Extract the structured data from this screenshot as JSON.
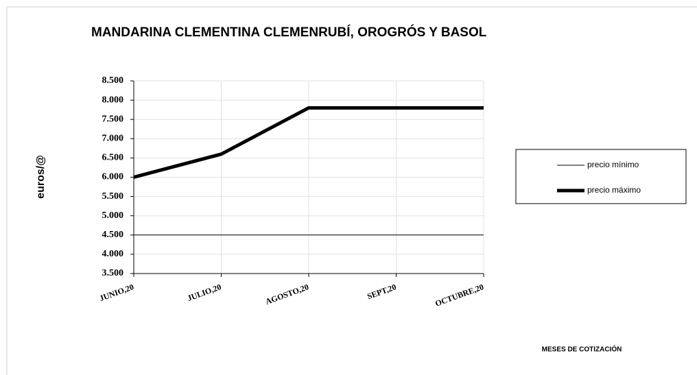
{
  "chart_data": {
    "type": "line",
    "title": "MANDARINA CLEMENTINA CLEMENRUBÍ, OROGRÓS Y BASOL",
    "y_label": "euros/@",
    "x_label": "MESES DE COTIZACIÓN",
    "categories": [
      "JUNIO,20",
      "JULIO,20",
      "AGOSTO,20",
      "SEPT,20",
      "OCTUBRE,20"
    ],
    "series": [
      {
        "name": "precio mínimo",
        "color": "#000000",
        "values": [
          4.5,
          4.5,
          4.5,
          4.5,
          4.5
        ]
      },
      {
        "name": "precio máximo",
        "color": "#000000",
        "values": [
          6.0,
          6.6,
          7.8,
          7.8,
          7.8
        ]
      }
    ],
    "ylim": [
      3.5,
      8.5
    ],
    "yticks": [
      {
        "value": 3.5,
        "label": "3.500"
      },
      {
        "value": 4.0,
        "label": "4.000"
      },
      {
        "value": 4.5,
        "label": "4.500"
      },
      {
        "value": 5.0,
        "label": "5.000"
      },
      {
        "value": 5.5,
        "label": "5.500"
      },
      {
        "value": 6.0,
        "label": "6.000"
      },
      {
        "value": 6.5,
        "label": "6.500"
      },
      {
        "value": 7.0,
        "label": "7.000"
      },
      {
        "value": 7.5,
        "label": "7.500"
      },
      {
        "value": 8.0,
        "label": "8.000"
      },
      {
        "value": 8.5,
        "label": "8.500"
      }
    ],
    "grid": true,
    "legend": "right"
  }
}
